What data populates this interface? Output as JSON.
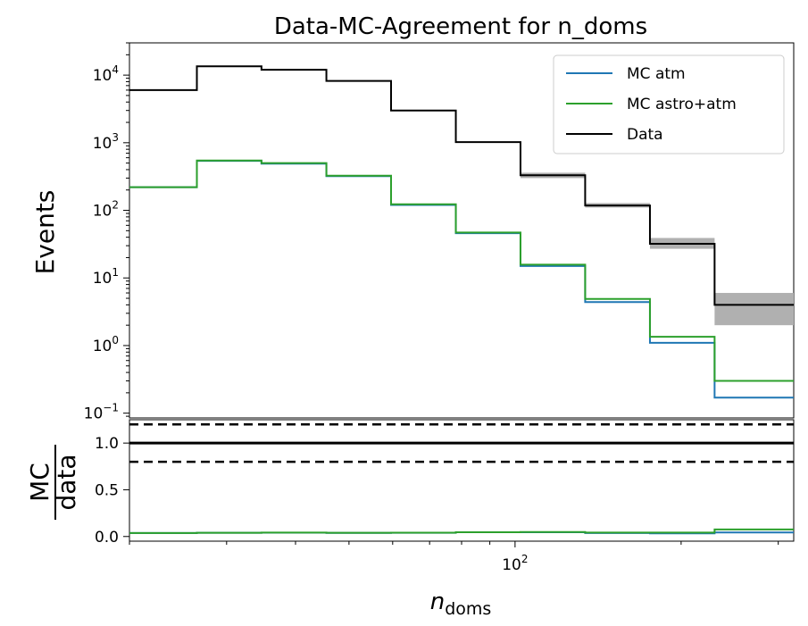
{
  "chart_data": [
    {
      "type": "line",
      "title": "Data-MC-Agreement for n_doms",
      "ylabel": "Events",
      "yscale": "log",
      "xscale": "log",
      "ylim": [
        0.085,
        30000
      ],
      "xlim": [
        20,
        320
      ],
      "yticks": [
        {
          "value": 10000,
          "base": "10",
          "exp": "4"
        },
        {
          "value": 1000,
          "base": "10",
          "exp": "3"
        },
        {
          "value": 100,
          "base": "10",
          "exp": "2"
        },
        {
          "value": 10,
          "base": "10",
          "exp": "1"
        },
        {
          "value": 1,
          "base": "10",
          "exp": "0"
        },
        {
          "value": 0.1,
          "base": "10",
          "exp": "−1"
        }
      ],
      "bin_edges": [
        20,
        26.5,
        34.7,
        45.5,
        59.6,
        78.1,
        102.3,
        134,
        175.6,
        230,
        320
      ],
      "series": [
        {
          "name": "MC atm",
          "color": "#1f77b4",
          "values": [
            220,
            540,
            490,
            320,
            120,
            46,
            15,
            4.4,
            1.1,
            0.17
          ]
        },
        {
          "name": "MC astro+atm",
          "color": "#2ca02c",
          "values": [
            220,
            545,
            500,
            325,
            123,
            47,
            15.7,
            4.9,
            1.35,
            0.3
          ]
        },
        {
          "name": "Data",
          "color": "#000000",
          "values": [
            6000,
            13500,
            12000,
            8200,
            3000,
            1020,
            330,
            118,
            32,
            4
          ]
        }
      ],
      "data_error_band": [
        {
          "bin": 6,
          "low": 300,
          "high": 360
        },
        {
          "bin": 7,
          "low": 110,
          "high": 128
        },
        {
          "bin": 8,
          "low": 27,
          "high": 39
        },
        {
          "bin": 9,
          "low": 2.0,
          "high": 6.0
        }
      ],
      "legend": {
        "position": "top-right"
      }
    },
    {
      "type": "line",
      "ylabel_num": "MC",
      "ylabel_den": "data",
      "xlabel_main": "n",
      "xlabel_sub": "doms",
      "xscale": "log",
      "ylim": [
        -0.05,
        1.25
      ],
      "yticks": [
        "0.0",
        "0.5",
        "1.0"
      ],
      "xticks": [
        {
          "value": 100,
          "base": "10",
          "exp": "2"
        }
      ],
      "reference_lines": [
        {
          "value": 1.0,
          "style": "solid"
        },
        {
          "value": 0.8,
          "style": "dashed"
        },
        {
          "value": 1.2,
          "style": "dashed"
        }
      ],
      "series": [
        {
          "name": "MC atm",
          "color": "#1f77b4",
          "values": [
            0.037,
            0.04,
            0.041,
            0.039,
            0.04,
            0.045,
            0.045,
            0.037,
            0.034,
            0.043
          ]
        },
        {
          "name": "MC astro+atm",
          "color": "#2ca02c",
          "values": [
            0.037,
            0.04,
            0.042,
            0.04,
            0.041,
            0.046,
            0.048,
            0.042,
            0.042,
            0.075
          ]
        }
      ]
    }
  ]
}
